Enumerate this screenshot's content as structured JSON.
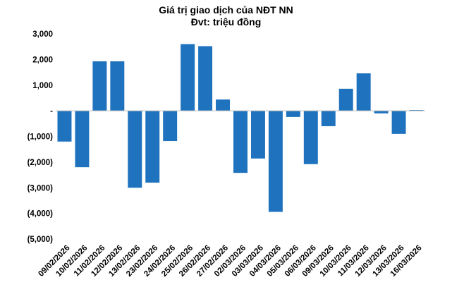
{
  "chart_data": {
    "type": "bar",
    "title": "Giá trị giao dịch của NĐT NN",
    "subtitle": "Đvt: triệu đồng",
    "categories": [
      "09/02/2026",
      "10/02/2026",
      "11/02/2026",
      "12/02/2026",
      "13/02/2026",
      "23/02/2026",
      "24/02/2026",
      "25/02/2026",
      "26/02/2026",
      "27/02/2026",
      "02/03/2026",
      "03/03/2026",
      "04/03/2026",
      "05/03/2026",
      "06/03/2026",
      "09/03/2026",
      "10/03/2026",
      "11/03/2026",
      "12/03/2026",
      "13/03/2026",
      "16/03/2026"
    ],
    "values": [
      -1200,
      -2200,
      1930,
      1930,
      -3000,
      -2800,
      -1180,
      2600,
      2520,
      440,
      -2420,
      -1860,
      -3940,
      -240,
      -2080,
      -600,
      860,
      1460,
      -100,
      -900,
      30
    ],
    "ylim": [
      -5000,
      3000
    ],
    "yticks": [
      3000,
      2000,
      1000,
      0,
      -1000,
      -2000,
      -3000,
      -4000,
      -5000
    ],
    "ytick_labels": [
      "3,000",
      "2,000",
      "1,000",
      "-",
      "(1,000)",
      "(2,000)",
      "(3,000)",
      "(4,000)",
      "(5,000)"
    ],
    "bar_color": "#1F73BE",
    "grid": false,
    "legend": false
  }
}
